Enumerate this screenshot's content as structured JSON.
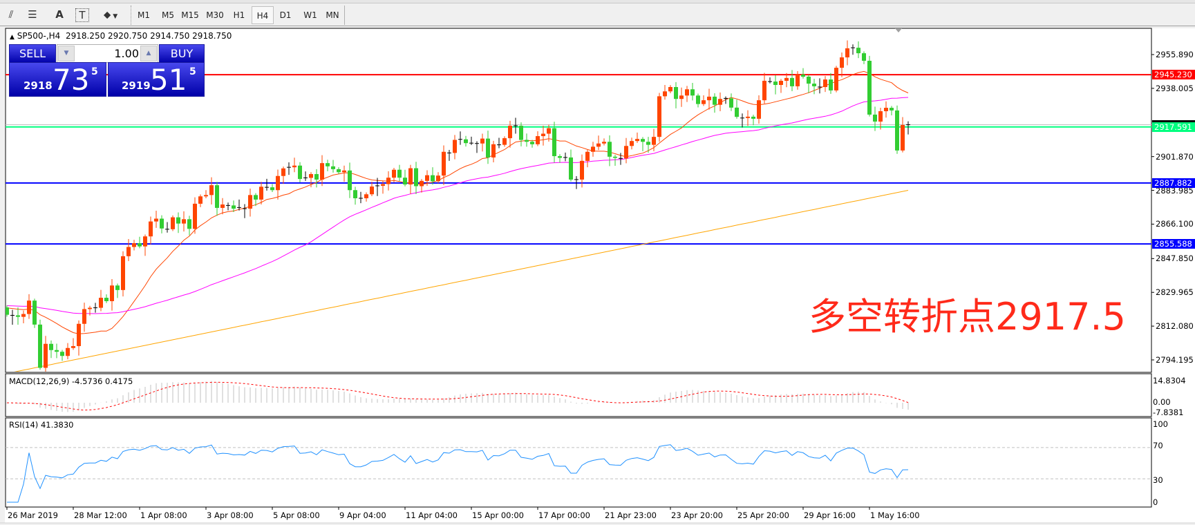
{
  "toolbar": {
    "icons": [
      "elliott-wave-icon",
      "fibonacci-fan-icon",
      "text-icon",
      "text-label-icon",
      "arrows-icon"
    ],
    "icon_glyphs": [
      "⫽",
      "☰",
      "A",
      "T",
      "⬥"
    ],
    "timeframes": [
      "M1",
      "M5",
      "M15",
      "M30",
      "H1",
      "H4",
      "D1",
      "W1",
      "MN"
    ],
    "active_timeframe": "H4"
  },
  "header": {
    "marker": "▲",
    "symbol": "SP500-,H4",
    "ohlc": "2918.250 2920.750 2914.750 2918.750"
  },
  "trade_panel": {
    "sell_label": "SELL",
    "buy_label": "BUY",
    "lot": "1.00",
    "sell_price": {
      "prefix": "2918",
      "big": "73",
      "sup": "5"
    },
    "buy_price": {
      "prefix": "2919",
      "big": "51",
      "sup": "5"
    }
  },
  "annotation": "多空转折点2917.5",
  "colors": {
    "bull": "#ff4500",
    "bear": "#32cd32",
    "doji": "#000000",
    "ma_fast": "#ff4500",
    "ma_mid": "#ff00ff",
    "ma_slow": "#ffa500",
    "macd_hist": "#c0c0c0",
    "macd_signal": "#ff0000",
    "rsi": "#1e90ff",
    "resistance": "#ff0000",
    "pivot": "#00ff7f",
    "support": "#0000ff",
    "bid_line": "#c0c0c0"
  },
  "chart_data": {
    "type": "candlestick",
    "symbol": "SP500-",
    "timeframe": "H4",
    "price_range": [
      2794.195,
      2955.89
    ],
    "first_open": 2822.0,
    "closes": [
      2818.1,
      2817.8,
      2817.0,
      2818.5,
      2825.6,
      2812.9,
      2790.0,
      2802.7,
      2799.4,
      2798.5,
      2796.3,
      2800.5,
      2801.5,
      2813.3,
      2821.1,
      2821.8,
      2821.8,
      2827.1,
      2825.3,
      2833.6,
      2831.2,
      2849.1,
      2854.0,
      2856.0,
      2854.3,
      2859.6,
      2867.5,
      2869.0,
      2863.8,
      2863.4,
      2869.7,
      2866.4,
      2868.7,
      2863.6,
      2876.9,
      2880.8,
      2881.5,
      2886.7,
      2874.7,
      2876.5,
      2876.0,
      2874.3,
      2874.9,
      2874.3,
      2881.5,
      2879.1,
      2885.9,
      2885.6,
      2884.1,
      2891.6,
      2895.6,
      2896.2,
      2897.1,
      2890.0,
      2890.6,
      2892.6,
      2889.7,
      2898.4,
      2896.7,
      2895.2,
      2893.6,
      2894.5,
      2884.1,
      2879.8,
      2879.8,
      2881.9,
      2886.0,
      2886.4,
      2887.3,
      2890.7,
      2894.9,
      2890.7,
      2887.1,
      2895.7,
      2886.2,
      2889.0,
      2892.0,
      2888.8,
      2891.8,
      2904.4,
      2903.8,
      2910.7,
      2911.0,
      2909.0,
      2909.0,
      2908.8,
      2911.4,
      2901.4,
      2908.4,
      2908.1,
      2911.6,
      2918.2,
      2918.2,
      2910.7,
      2909.7,
      2908.4,
      2912.7,
      2914.0,
      2916.9,
      2902.1,
      2901.2,
      2901.4,
      2889.7,
      2889.7,
      2899.6,
      2904.4,
      2907.1,
      2908.8,
      2909.7,
      2901.8,
      2901.2,
      2900.9,
      2907.5,
      2910.1,
      2911.2,
      2909.7,
      2908.1,
      2912.3,
      2933.8,
      2936.4,
      2938.7,
      2932.4,
      2934.2,
      2937.5,
      2934.2,
      2929.7,
      2931.7,
      2933.6,
      2929.3,
      2932.4,
      2932.7,
      2927.8,
      2922.9,
      2922.3,
      2923.0,
      2921.9,
      2931.7,
      2942.0,
      2941.6,
      2939.8,
      2942.0,
      2943.5,
      2939.1,
      2945.3,
      2944.2,
      2940.5,
      2939.1,
      2938.7,
      2942.7,
      2936.9,
      2948.9,
      2954.4,
      2959.2,
      2959.5,
      2956.6,
      2952.6,
      2924.1,
      2920.4,
      2925.9,
      2927.7,
      2926.3,
      2905.1,
      2918.6,
      2918.75
    ],
    "ma_slow_endpoints": [
      2787,
      2884
    ],
    "price_ticks": [
      "2955.890",
      "2938.005",
      "2901.870",
      "2883.985",
      "2866.100",
      "2847.850",
      "2829.965",
      "2812.080",
      "2794.195"
    ],
    "horizontal_lines": [
      {
        "price": 2945.23,
        "label": "2945.230",
        "kind": "resistance"
      },
      {
        "price": 2917.591,
        "label": "2917.591",
        "kind": "pivot"
      },
      {
        "price": 2887.882,
        "label": "2887.882",
        "kind": "support"
      },
      {
        "price": 2855.588,
        "label": "2855.588",
        "kind": "support"
      }
    ],
    "bid": 2918.75,
    "time_labels": [
      "26 Mar 2019",
      "28 Mar 12:00",
      "1 Apr 08:00",
      "3 Apr 08:00",
      "5 Apr 08:00",
      "9 Apr 04:00",
      "11 Apr 04:00",
      "15 Apr 00:00",
      "17 Apr 00:00",
      "21 Apr 23:00",
      "23 Apr 20:00",
      "25 Apr 20:00",
      "29 Apr 16:00",
      "1 May 16:00"
    ],
    "macd": {
      "label": "MACD(12,26,9) -4.5736 0.4175",
      "ticks": [
        "14.8304",
        "0.00",
        "-7.8381"
      ],
      "range": [
        -7.8381,
        14.8304
      ]
    },
    "rsi": {
      "label": "RSI(14) 41.3830",
      "ticks": [
        "100",
        "70",
        "30",
        "0"
      ],
      "levels": [
        70,
        30
      ]
    }
  }
}
